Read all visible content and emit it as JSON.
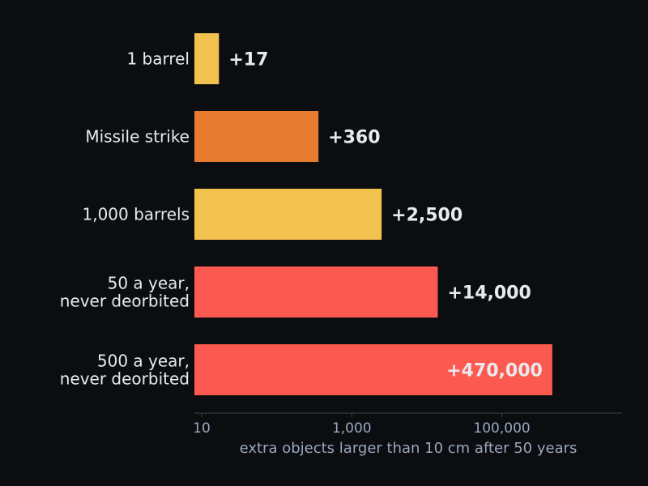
{
  "chart_data": {
    "type": "bar",
    "orientation": "horizontal",
    "x_scale": "log",
    "xlim": [
      8,
      4000000
    ],
    "categories": [
      [
        "1 barrel"
      ],
      [
        "Missile strike"
      ],
      [
        "1,000 barrels"
      ],
      [
        "50 a year,",
        "never deorbited"
      ],
      [
        "500 a year,",
        "never deorbited"
      ]
    ],
    "values": [
      17,
      360,
      2500,
      14000,
      470000
    ],
    "value_labels": [
      "+17",
      "+360",
      "+2,500",
      "+14,000",
      "+470,000"
    ],
    "bar_colors": [
      "#f2c14e",
      "#e67a2e",
      "#f2c14e",
      "#fc5a50",
      "#fc5a50"
    ],
    "x_ticks": [
      {
        "value": 10,
        "label": "10"
      },
      {
        "value": 1000,
        "label": "1,000"
      },
      {
        "value": 100000,
        "label": "100,000"
      }
    ],
    "xlabel": "extra objects larger than 10 cm after 50 years",
    "title": "",
    "grid": false,
    "legend": "none"
  },
  "colors": {
    "background": "#0b0d11",
    "text": "#e8eaed",
    "axis": "#3a4150",
    "tick_text": "#9aa7bd"
  }
}
